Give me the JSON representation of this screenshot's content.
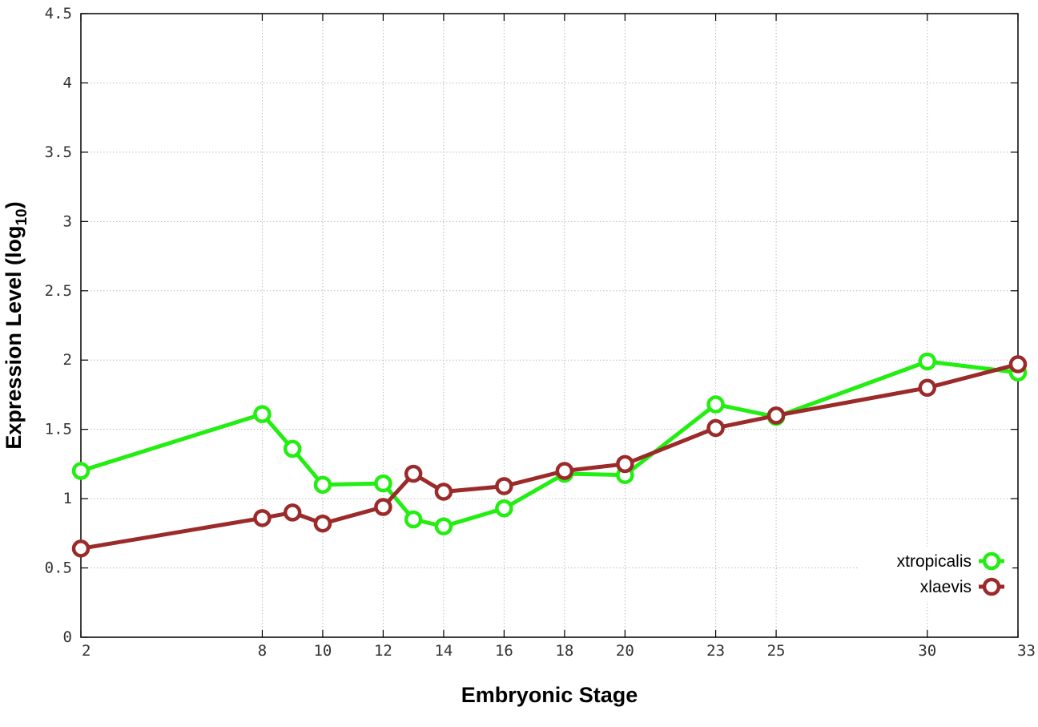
{
  "chart_data": {
    "type": "line",
    "xlabel": "Embryonic Stage",
    "ylabel_main": "Expression Level (log",
    "ylabel_sub": "10",
    "ylabel_close": ")",
    "x": [
      2,
      8,
      9,
      10,
      12,
      13,
      14,
      16,
      18,
      20,
      23,
      25,
      30,
      33
    ],
    "x_ticks": [
      2,
      8,
      10,
      12,
      14,
      16,
      18,
      20,
      23,
      25,
      30,
      33
    ],
    "y_ticks": [
      "0",
      "0.5",
      "1",
      "1.5",
      "2",
      "2.5",
      "3",
      "3.5",
      "4",
      "4.5"
    ],
    "xlim": [
      2,
      33
    ],
    "ylim": [
      0,
      4.5
    ],
    "grid": true,
    "legend_position": "bottom-right",
    "series": [
      {
        "name": "xtropicalis",
        "color": "#22ee11",
        "values": [
          1.2,
          1.61,
          1.36,
          1.1,
          1.11,
          0.85,
          0.8,
          0.93,
          1.18,
          1.17,
          1.68,
          1.59,
          1.99,
          1.91
        ]
      },
      {
        "name": "xlaevis",
        "color": "#9b2a2a",
        "values": [
          0.64,
          0.86,
          0.9,
          0.82,
          0.94,
          1.18,
          1.05,
          1.09,
          1.2,
          1.25,
          1.51,
          1.6,
          1.8,
          1.97
        ]
      }
    ]
  }
}
